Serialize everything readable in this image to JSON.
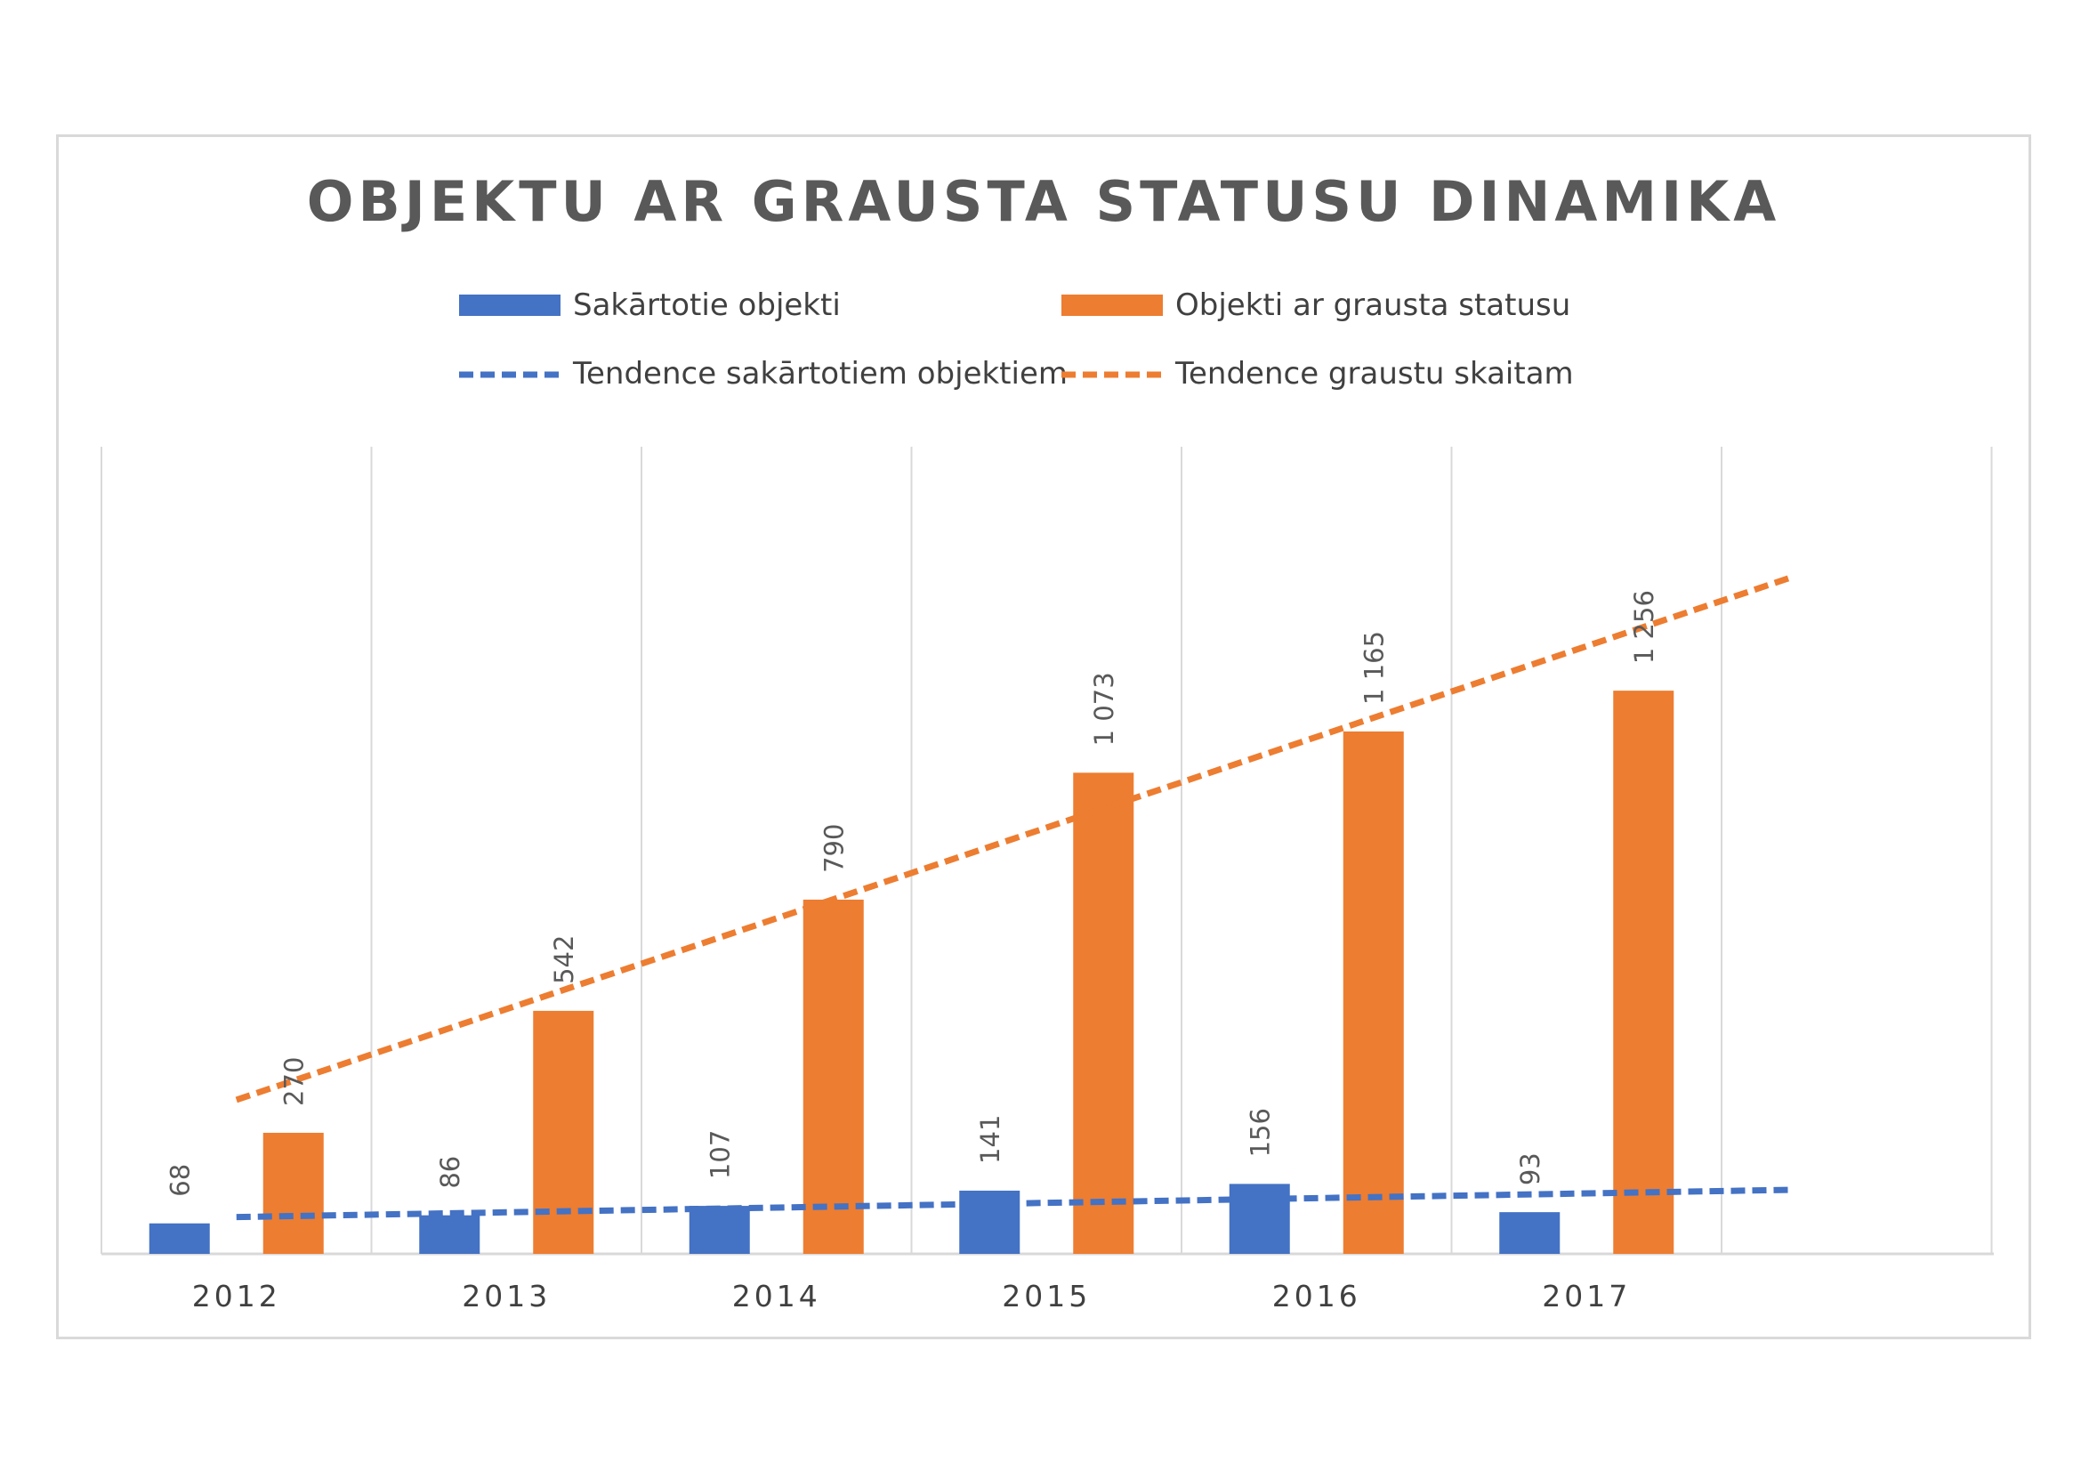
{
  "chart_data": {
    "type": "bar",
    "title": "OBJEKTU AR GRAUSTA STATUSU DINAMIKA",
    "categories": [
      "2012",
      "2013",
      "2014",
      "2015",
      "2016",
      "2017"
    ],
    "series": [
      {
        "name": "Sakārtotie objekti",
        "values": [
          68,
          86,
          107,
          141,
          156,
          93
        ],
        "labels": [
          "68",
          "86",
          "107",
          "141",
          "156",
          "93"
        ],
        "color": "#4472c4"
      },
      {
        "name": "Objekti ar grausta statusu",
        "values": [
          270,
          542,
          790,
          1073,
          1165,
          1256
        ],
        "labels": [
          "270",
          "542",
          "790",
          "1 073",
          "1 165",
          "1 256"
        ],
        "color": "#ed7d31"
      }
    ],
    "trendlines": [
      {
        "name": "Tendence sakārtotiem objektiem",
        "series": 0,
        "type": "linear",
        "dashed": true,
        "color": "#4472c4"
      },
      {
        "name": "Tendence graustu skaitam",
        "series": 1,
        "type": "linear",
        "dashed": true,
        "color": "#ed7d31"
      }
    ],
    "ylim": [
      0,
      1800
    ],
    "grid": "vertical",
    "legend_position": "top",
    "data_labels": "rotated"
  }
}
